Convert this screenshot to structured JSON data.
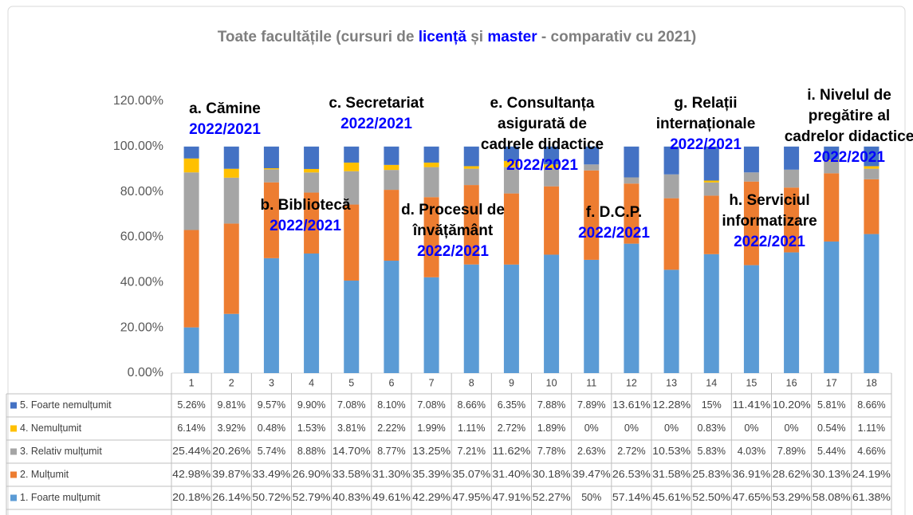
{
  "chart_data": {
    "type": "stacked_bar",
    "title": [
      "Toate facultățile (cursuri de ",
      "licență",
      " și ",
      "master",
      " - comparativ cu 2021)"
    ],
    "title_colors": [
      "#7f7f7f",
      "#0000ff",
      "#7f7f7f",
      "#0000ff",
      "#7f7f7f"
    ],
    "categories": [
      "1",
      "2",
      "3",
      "4",
      "5",
      "6",
      "7",
      "8",
      "9",
      "10",
      "11",
      "12",
      "13",
      "14",
      "15",
      "16",
      "17",
      "18"
    ],
    "ylim": [
      0,
      120
    ],
    "yticks": [
      {
        "value": 0,
        "label": "0.00%"
      },
      {
        "value": 20,
        "label": "20.00%"
      },
      {
        "value": 40,
        "label": "40.00%"
      },
      {
        "value": 60,
        "label": "60.00%"
      },
      {
        "value": 80,
        "label": "80.00%"
      },
      {
        "value": 100,
        "label": "100.00%"
      },
      {
        "value": 120,
        "label": "120.00%"
      }
    ],
    "series": [
      {
        "name": "1. Foarte mulțumit",
        "color": "#5b9bd5",
        "values": [
          20.18,
          26.14,
          50.72,
          52.79,
          40.83,
          49.61,
          42.29,
          47.95,
          47.91,
          52.27,
          50,
          57.14,
          45.61,
          52.5,
          47.65,
          53.29,
          58.08,
          61.38
        ],
        "value_labels": [
          "20.18%",
          "26.14%",
          "50.72%",
          "52.79%",
          "40.83%",
          "49.61%",
          "42.29%",
          "47.95%",
          "47.91%",
          "52.27%",
          "50%",
          "57.14%",
          "45.61%",
          "52.50%",
          "47.65%",
          "53.29%",
          "58.08%",
          "61.38%"
        ]
      },
      {
        "name": "2. Mulțumit",
        "color": "#ed7d31",
        "values": [
          42.98,
          39.87,
          33.49,
          26.9,
          33.58,
          31.3,
          35.39,
          35.07,
          31.4,
          30.18,
          39.47,
          26.53,
          31.58,
          25.83,
          36.91,
          28.62,
          30.13,
          24.19
        ],
        "value_labels": [
          "42.98%",
          "39.87%",
          "33.49%",
          "26.90%",
          "33.58%",
          "31.30%",
          "35.39%",
          "35.07%",
          "31.40%",
          "30.18%",
          "39.47%",
          "26.53%",
          "31.58%",
          "25.83%",
          "36.91%",
          "28.62%",
          "30.13%",
          "24.19%"
        ]
      },
      {
        "name": "3. Relativ mulțumit",
        "color": "#a5a5a5",
        "values": [
          25.44,
          20.26,
          5.74,
          8.88,
          14.7,
          8.77,
          13.25,
          7.21,
          11.62,
          7.78,
          2.63,
          2.72,
          10.53,
          5.83,
          4.03,
          7.89,
          5.44,
          4.66
        ],
        "value_labels": [
          "25.44%",
          "20.26%",
          "5.74%",
          "8.88%",
          "14.70%",
          "8.77%",
          "13.25%",
          "7.21%",
          "11.62%",
          "7.78%",
          "2.63%",
          "2.72%",
          "10.53%",
          "5.83%",
          "4.03%",
          "7.89%",
          "5.44%",
          "4.66%"
        ]
      },
      {
        "name": "4. Nemulțumit",
        "color": "#ffc000",
        "values": [
          6.14,
          3.92,
          0.48,
          1.53,
          3.81,
          2.22,
          1.99,
          1.11,
          2.72,
          1.89,
          0,
          0,
          0,
          0.83,
          0,
          0,
          0.54,
          1.11
        ],
        "value_labels": [
          "6.14%",
          "3.92%",
          "0.48%",
          "1.53%",
          "3.81%",
          "2.22%",
          "1.99%",
          "1.11%",
          "2.72%",
          "1.89%",
          "0%",
          "0%",
          "0%",
          "0.83%",
          "0%",
          "0%",
          "0.54%",
          "1.11%"
        ]
      },
      {
        "name": "5. Foarte nemulțumit",
        "color": "#4472c4",
        "values": [
          5.26,
          9.81,
          9.57,
          9.9,
          7.08,
          8.1,
          7.08,
          8.66,
          6.35,
          7.88,
          7.89,
          13.61,
          12.28,
          15,
          11.41,
          10.2,
          5.81,
          8.66
        ],
        "value_labels": [
          "5.26%",
          "9.81%",
          "9.57%",
          "9.90%",
          "7.08%",
          "8.10%",
          "7.08%",
          "8.66%",
          "6.35%",
          "7.88%",
          "7.89%",
          "13.61%",
          "12.28%",
          "15%",
          "11.41%",
          "10.20%",
          "5.81%",
          "8.66%"
        ]
      }
    ],
    "annotations": [
      {
        "lines": [
          "a. Cămine"
        ],
        "period": "2022/2021"
      },
      {
        "lines": [
          "b. Bibliotecă"
        ],
        "period": "2022/2021"
      },
      {
        "lines": [
          "c. Secretariat"
        ],
        "period": "2022/2021"
      },
      {
        "lines": [
          "d. Procesul de",
          "învățământ"
        ],
        "period": "2022/2021"
      },
      {
        "lines": [
          "e. Consultanța",
          "asigurată de",
          "cadrele didactice"
        ],
        "period": "2022/2021"
      },
      {
        "lines": [
          "f. D.C.P."
        ],
        "period": "2022/2021"
      },
      {
        "lines": [
          "g. Relații",
          "internaționale"
        ],
        "period": "2022/2021"
      },
      {
        "lines": [
          "h. Serviciul",
          "informatizare"
        ],
        "period": "2022/2021"
      },
      {
        "lines": [
          "i. Nivelul de",
          "pregătire al",
          "cadrelor didactice"
        ],
        "period": "2022/2021"
      }
    ]
  }
}
